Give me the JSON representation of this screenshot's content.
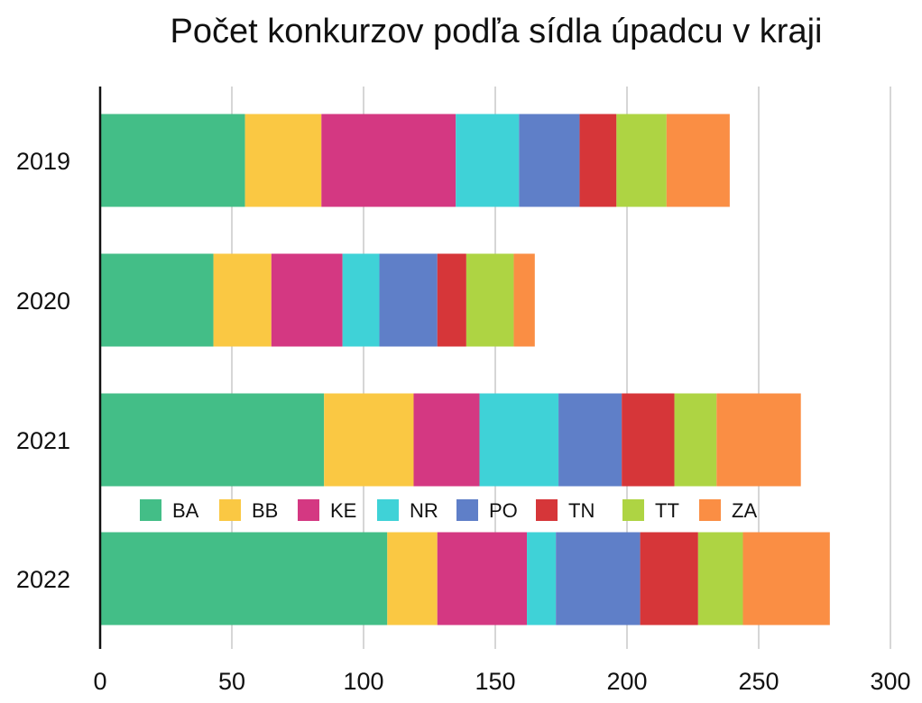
{
  "chart_data": {
    "type": "bar",
    "orientation": "horizontal",
    "stacked": true,
    "title": "Počet konkurzov podľa sídla úpadcu v kraji",
    "categories": [
      "2019",
      "2020",
      "2021",
      "2022"
    ],
    "series": [
      {
        "name": "BA",
        "color": "#43BE87",
        "values": [
          55,
          43,
          85,
          109
        ]
      },
      {
        "name": "BB",
        "color": "#FAC843",
        "values": [
          29,
          22,
          34,
          19
        ]
      },
      {
        "name": "KE",
        "color": "#D43882",
        "values": [
          51,
          27,
          25,
          34
        ]
      },
      {
        "name": "NR",
        "color": "#3FD2D7",
        "values": [
          24,
          14,
          30,
          11
        ]
      },
      {
        "name": "PO",
        "color": "#5F7FC8",
        "values": [
          23,
          22,
          24,
          32
        ]
      },
      {
        "name": "TN",
        "color": "#D63639",
        "values": [
          14,
          11,
          20,
          22
        ]
      },
      {
        "name": "TT",
        "color": "#AED443",
        "values": [
          19,
          18,
          16,
          17
        ]
      },
      {
        "name": "ZA",
        "color": "#FA8E44",
        "values": [
          24,
          8,
          32,
          33
        ]
      }
    ],
    "xlim": [
      0,
      300
    ],
    "x_ticks": [
      0,
      50,
      100,
      150,
      200,
      250,
      300
    ],
    "grid": "vertical",
    "legend_position": "inside-bottom"
  }
}
